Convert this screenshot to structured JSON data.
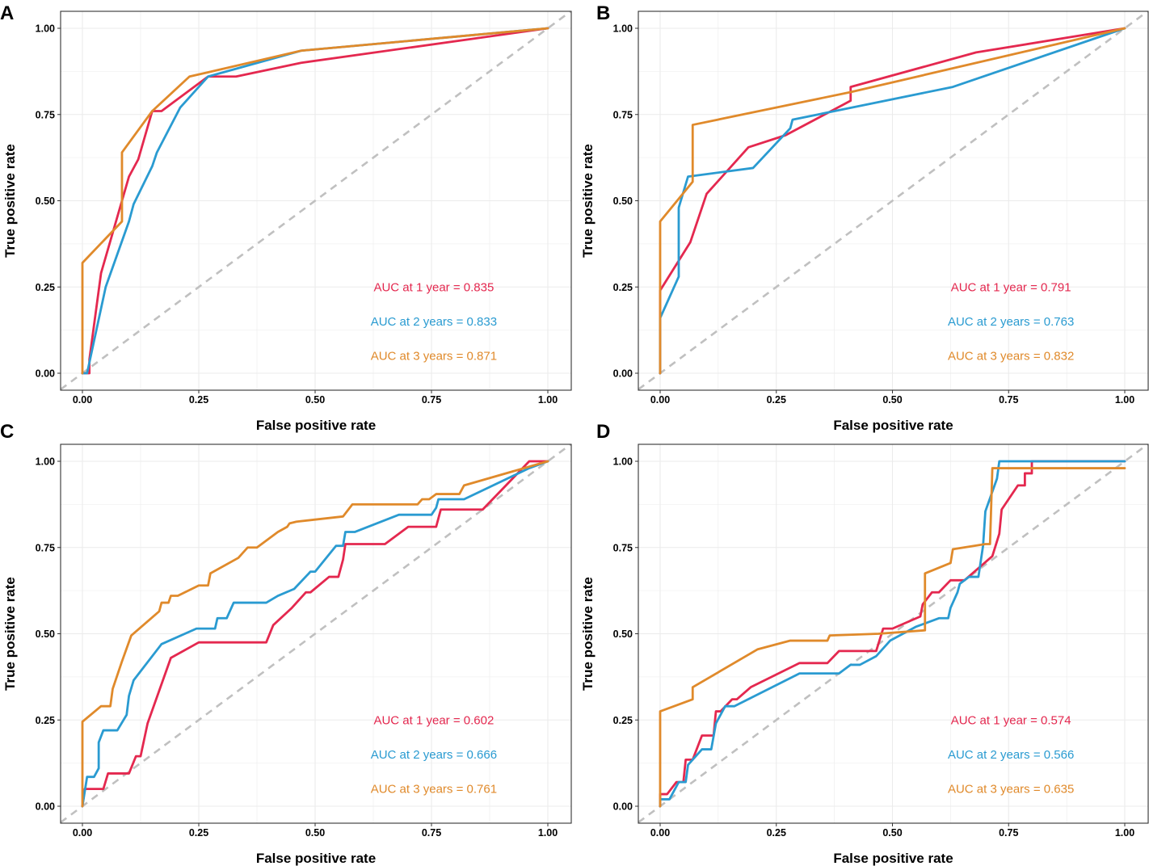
{
  "figure": {
    "type": "roc-grid",
    "colors": {
      "year1": "#e4284f",
      "year2": "#2a9bd1",
      "year3": "#e08a2b",
      "diagonal": "#c0c0c0",
      "grid": "#ebebeb"
    }
  },
  "chart_data": [
    {
      "type": "line",
      "panel": "A",
      "xlabel": "False positive rate",
      "ylabel": "True positive rate",
      "xlim": [
        0,
        1
      ],
      "ylim": [
        0,
        1
      ],
      "ticks": [
        "0.00",
        "0.25",
        "0.50",
        "0.75",
        "1.00"
      ],
      "reference_line": "diagonal",
      "series": [
        {
          "name": "1 year",
          "color": "#e4284f",
          "auc_label": "AUC at 1 year = 0.835",
          "points": [
            [
              0,
              0
            ],
            [
              0.015,
              0
            ],
            [
              0.015,
              0.04
            ],
            [
              0.04,
              0.29
            ],
            [
              0.1,
              0.57
            ],
            [
              0.12,
              0.62
            ],
            [
              0.15,
              0.76
            ],
            [
              0.17,
              0.76
            ],
            [
              0.27,
              0.86
            ],
            [
              0.33,
              0.86
            ],
            [
              0.47,
              0.9
            ],
            [
              1,
              1
            ]
          ]
        },
        {
          "name": "2 years",
          "color": "#2a9bd1",
          "auc_label": "AUC at 2 years = 0.833",
          "points": [
            [
              0,
              0
            ],
            [
              0.01,
              0
            ],
            [
              0.05,
              0.25
            ],
            [
              0.1,
              0.44
            ],
            [
              0.11,
              0.49
            ],
            [
              0.15,
              0.6
            ],
            [
              0.16,
              0.64
            ],
            [
              0.21,
              0.77
            ],
            [
              0.27,
              0.86
            ],
            [
              0.47,
              0.935
            ],
            [
              1,
              1
            ]
          ]
        },
        {
          "name": "3 years",
          "color": "#e08a2b",
          "auc_label": "AUC at 3 years = 0.871",
          "points": [
            [
              0,
              0
            ],
            [
              0,
              0.32
            ],
            [
              0.085,
              0.44
            ],
            [
              0.085,
              0.64
            ],
            [
              0.15,
              0.76
            ],
            [
              0.23,
              0.86
            ],
            [
              0.47,
              0.935
            ],
            [
              1,
              1
            ]
          ]
        }
      ]
    },
    {
      "type": "line",
      "panel": "B",
      "xlabel": "False positive rate",
      "ylabel": "True positive rate",
      "xlim": [
        0,
        1
      ],
      "ylim": [
        0,
        1
      ],
      "ticks": [
        "0.00",
        "0.25",
        "0.50",
        "0.75",
        "1.00"
      ],
      "reference_line": "diagonal",
      "series": [
        {
          "name": "1 year",
          "color": "#e4284f",
          "auc_label": "AUC at 1 year = 0.791",
          "points": [
            [
              0,
              0
            ],
            [
              0,
              0.24
            ],
            [
              0.065,
              0.38
            ],
            [
              0.1,
              0.52
            ],
            [
              0.19,
              0.655
            ],
            [
              0.27,
              0.69
            ],
            [
              0.41,
              0.79
            ],
            [
              0.41,
              0.83
            ],
            [
              0.68,
              0.93
            ],
            [
              1,
              1
            ]
          ]
        },
        {
          "name": "2 years",
          "color": "#2a9bd1",
          "auc_label": "AUC at 2 years = 0.763",
          "points": [
            [
              0,
              0
            ],
            [
              0,
              0.16
            ],
            [
              0.04,
              0.28
            ],
            [
              0.04,
              0.48
            ],
            [
              0.06,
              0.57
            ],
            [
              0.2,
              0.595
            ],
            [
              0.28,
              0.71
            ],
            [
              0.285,
              0.735
            ],
            [
              0.63,
              0.83
            ],
            [
              1,
              1
            ]
          ]
        },
        {
          "name": "3 years",
          "color": "#e08a2b",
          "auc_label": "AUC at 3 years = 0.832",
          "points": [
            [
              0,
              0
            ],
            [
              0,
              0.44
            ],
            [
              0.07,
              0.555
            ],
            [
              0.07,
              0.72
            ],
            [
              0.41,
              0.815
            ],
            [
              1,
              1
            ]
          ]
        }
      ]
    },
    {
      "type": "line",
      "panel": "C",
      "xlabel": "False positive rate",
      "ylabel": "True positive rate",
      "xlim": [
        0,
        1
      ],
      "ylim": [
        0,
        1
      ],
      "ticks": [
        "0.00",
        "0.25",
        "0.50",
        "0.75",
        "1.00"
      ],
      "reference_line": "diagonal",
      "series": [
        {
          "name": "1 year",
          "color": "#e4284f",
          "auc_label": "AUC at 1 year = 0.602",
          "points": [
            [
              0,
              0
            ],
            [
              0.005,
              0.05
            ],
            [
              0.045,
              0.05
            ],
            [
              0.055,
              0.095
            ],
            [
              0.1,
              0.095
            ],
            [
              0.115,
              0.145
            ],
            [
              0.125,
              0.145
            ],
            [
              0.14,
              0.24
            ],
            [
              0.19,
              0.43
            ],
            [
              0.25,
              0.475
            ],
            [
              0.395,
              0.475
            ],
            [
              0.41,
              0.525
            ],
            [
              0.45,
              0.575
            ],
            [
              0.48,
              0.62
            ],
            [
              0.49,
              0.62
            ],
            [
              0.53,
              0.665
            ],
            [
              0.55,
              0.665
            ],
            [
              0.56,
              0.715
            ],
            [
              0.565,
              0.76
            ],
            [
              0.65,
              0.76
            ],
            [
              0.7,
              0.81
            ],
            [
              0.76,
              0.81
            ],
            [
              0.77,
              0.86
            ],
            [
              0.86,
              0.86
            ],
            [
              0.96,
              1
            ],
            [
              1,
              1
            ]
          ]
        },
        {
          "name": "2 years",
          "color": "#2a9bd1",
          "auc_label": "AUC at 2 years = 0.666",
          "points": [
            [
              0,
              0
            ],
            [
              0.01,
              0.085
            ],
            [
              0.025,
              0.085
            ],
            [
              0.035,
              0.11
            ],
            [
              0.035,
              0.185
            ],
            [
              0.045,
              0.22
            ],
            [
              0.075,
              0.22
            ],
            [
              0.095,
              0.265
            ],
            [
              0.1,
              0.32
            ],
            [
              0.11,
              0.365
            ],
            [
              0.17,
              0.47
            ],
            [
              0.245,
              0.515
            ],
            [
              0.285,
              0.515
            ],
            [
              0.29,
              0.545
            ],
            [
              0.31,
              0.545
            ],
            [
              0.325,
              0.59
            ],
            [
              0.395,
              0.59
            ],
            [
              0.42,
              0.61
            ],
            [
              0.455,
              0.63
            ],
            [
              0.49,
              0.68
            ],
            [
              0.5,
              0.68
            ],
            [
              0.545,
              0.755
            ],
            [
              0.56,
              0.755
            ],
            [
              0.565,
              0.795
            ],
            [
              0.585,
              0.795
            ],
            [
              0.68,
              0.845
            ],
            [
              0.75,
              0.845
            ],
            [
              0.76,
              0.865
            ],
            [
              0.765,
              0.89
            ],
            [
              0.82,
              0.89
            ],
            [
              0.96,
              0.98
            ],
            [
              1,
              1
            ]
          ]
        },
        {
          "name": "3 years",
          "color": "#e08a2b",
          "auc_label": "AUC at 3 years = 0.761",
          "points": [
            [
              0,
              0
            ],
            [
              0,
              0.245
            ],
            [
              0.04,
              0.29
            ],
            [
              0.06,
              0.29
            ],
            [
              0.065,
              0.34
            ],
            [
              0.08,
              0.4
            ],
            [
              0.085,
              0.42
            ],
            [
              0.105,
              0.495
            ],
            [
              0.165,
              0.565
            ],
            [
              0.17,
              0.59
            ],
            [
              0.185,
              0.59
            ],
            [
              0.19,
              0.61
            ],
            [
              0.205,
              0.61
            ],
            [
              0.25,
              0.64
            ],
            [
              0.27,
              0.64
            ],
            [
              0.275,
              0.675
            ],
            [
              0.335,
              0.72
            ],
            [
              0.355,
              0.75
            ],
            [
              0.375,
              0.75
            ],
            [
              0.42,
              0.795
            ],
            [
              0.44,
              0.81
            ],
            [
              0.445,
              0.82
            ],
            [
              0.46,
              0.825
            ],
            [
              0.56,
              0.84
            ],
            [
              0.58,
              0.875
            ],
            [
              0.72,
              0.875
            ],
            [
              0.73,
              0.89
            ],
            [
              0.745,
              0.89
            ],
            [
              0.76,
              0.905
            ],
            [
              0.81,
              0.905
            ],
            [
              0.82,
              0.93
            ],
            [
              1,
              1
            ]
          ]
        }
      ]
    },
    {
      "type": "line",
      "panel": "D",
      "xlabel": "False positive rate",
      "ylabel": "True positive rate",
      "xlim": [
        0,
        1
      ],
      "ylim": [
        0,
        1
      ],
      "ticks": [
        "0.00",
        "0.25",
        "0.50",
        "0.75",
        "1.00"
      ],
      "reference_line": "diagonal",
      "series": [
        {
          "name": "1 year",
          "color": "#e4284f",
          "auc_label": "AUC at 1 year = 0.574",
          "points": [
            [
              0,
              0
            ],
            [
              0,
              0.035
            ],
            [
              0.015,
              0.035
            ],
            [
              0.035,
              0.07
            ],
            [
              0.05,
              0.07
            ],
            [
              0.055,
              0.135
            ],
            [
              0.07,
              0.135
            ],
            [
              0.09,
              0.205
            ],
            [
              0.115,
              0.205
            ],
            [
              0.12,
              0.275
            ],
            [
              0.13,
              0.275
            ],
            [
              0.155,
              0.31
            ],
            [
              0.165,
              0.31
            ],
            [
              0.195,
              0.345
            ],
            [
              0.3,
              0.415
            ],
            [
              0.36,
              0.415
            ],
            [
              0.385,
              0.45
            ],
            [
              0.465,
              0.45
            ],
            [
              0.48,
              0.515
            ],
            [
              0.5,
              0.515
            ],
            [
              0.56,
              0.55
            ],
            [
              0.565,
              0.585
            ],
            [
              0.585,
              0.62
            ],
            [
              0.6,
              0.62
            ],
            [
              0.625,
              0.655
            ],
            [
              0.655,
              0.655
            ],
            [
              0.715,
              0.725
            ],
            [
              0.73,
              0.79
            ],
            [
              0.735,
              0.86
            ],
            [
              0.77,
              0.93
            ],
            [
              0.785,
              0.93
            ],
            [
              0.785,
              0.965
            ],
            [
              0.8,
              0.965
            ],
            [
              0.8,
              1
            ],
            [
              1,
              1
            ]
          ]
        },
        {
          "name": "2 years",
          "color": "#2a9bd1",
          "auc_label": "AUC at 2 years = 0.566",
          "points": [
            [
              0,
              0
            ],
            [
              0,
              0.02
            ],
            [
              0.02,
              0.02
            ],
            [
              0.04,
              0.07
            ],
            [
              0.055,
              0.07
            ],
            [
              0.06,
              0.12
            ],
            [
              0.09,
              0.165
            ],
            [
              0.11,
              0.165
            ],
            [
              0.12,
              0.24
            ],
            [
              0.14,
              0.29
            ],
            [
              0.16,
              0.29
            ],
            [
              0.3,
              0.385
            ],
            [
              0.385,
              0.385
            ],
            [
              0.41,
              0.41
            ],
            [
              0.43,
              0.41
            ],
            [
              0.465,
              0.435
            ],
            [
              0.495,
              0.48
            ],
            [
              0.55,
              0.52
            ],
            [
              0.6,
              0.545
            ],
            [
              0.62,
              0.545
            ],
            [
              0.625,
              0.575
            ],
            [
              0.64,
              0.62
            ],
            [
              0.645,
              0.645
            ],
            [
              0.665,
              0.665
            ],
            [
              0.685,
              0.665
            ],
            [
              0.695,
              0.755
            ],
            [
              0.7,
              0.855
            ],
            [
              0.725,
              0.95
            ],
            [
              0.73,
              1
            ],
            [
              1,
              1
            ]
          ]
        },
        {
          "name": "3 years",
          "color": "#e08a2b",
          "auc_label": "AUC at 3 years = 0.635",
          "points": [
            [
              0,
              0
            ],
            [
              0,
              0.275
            ],
            [
              0.07,
              0.31
            ],
            [
              0.07,
              0.345
            ],
            [
              0.21,
              0.455
            ],
            [
              0.28,
              0.48
            ],
            [
              0.36,
              0.48
            ],
            [
              0.365,
              0.495
            ],
            [
              0.47,
              0.5
            ],
            [
              0.57,
              0.51
            ],
            [
              0.57,
              0.675
            ],
            [
              0.625,
              0.705
            ],
            [
              0.63,
              0.745
            ],
            [
              0.7,
              0.76
            ],
            [
              0.71,
              0.76
            ],
            [
              0.715,
              0.98
            ],
            [
              1,
              0.98
            ]
          ]
        }
      ]
    }
  ]
}
